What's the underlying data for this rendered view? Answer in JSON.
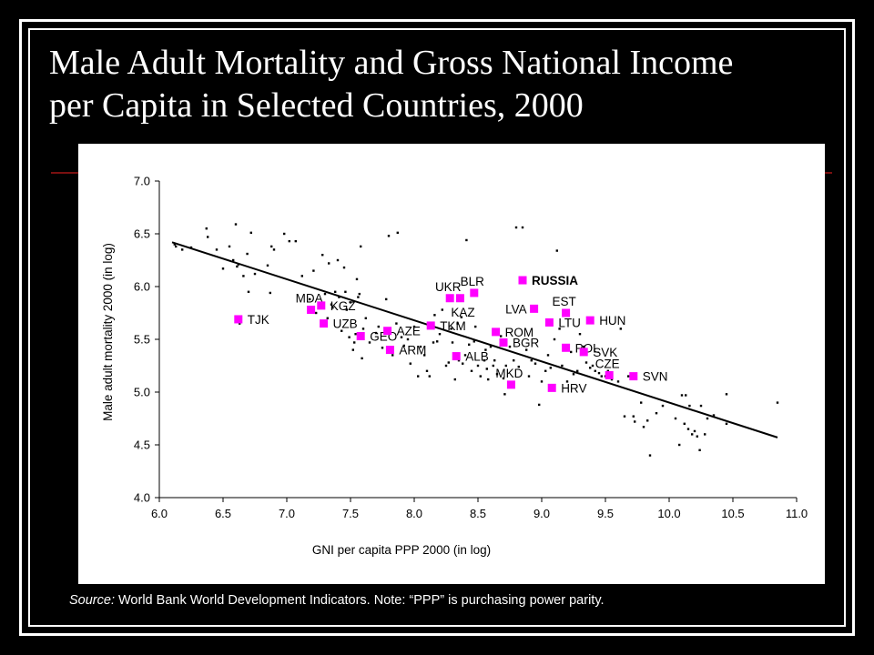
{
  "slide": {
    "title_line1": "Male Adult Mortality and Gross National Income",
    "title_line2": "per Capita in Selected Countries, 2000",
    "source_label": "Source:",
    "source_text": " World Bank World Development Indicators.  Note: “PPP” is purchasing power parity."
  },
  "colors": {
    "background": "#000000",
    "highlight": "#ff00ff",
    "point": "#000000",
    "accent_line": "#7a1010"
  },
  "chart_data": {
    "type": "scatter",
    "title": "",
    "xlabel": "GNI per capita PPP 2000 (in log)",
    "ylabel": "Male adult mortality 2000 (in log)",
    "xlim": [
      6.0,
      11.0
    ],
    "ylim": [
      4.0,
      7.0
    ],
    "xticks": [
      "6.0",
      "6.5",
      "7.0",
      "7.5",
      "8.0",
      "8.5",
      "9.0",
      "9.5",
      "10.0",
      "10.5",
      "11.0"
    ],
    "yticks": [
      "4.0",
      "4.5",
      "5.0",
      "5.5",
      "6.0",
      "6.5",
      "7.0"
    ],
    "grid": false,
    "trendline": {
      "x": [
        6.1,
        10.85
      ],
      "y": [
        6.42,
        4.57
      ]
    },
    "highlighted": [
      {
        "label": "TJK",
        "x": 6.62,
        "y": 5.69,
        "label_pos": "right",
        "bold": false
      },
      {
        "label": "MDA",
        "x": 7.19,
        "y": 5.78,
        "label_pos": "above",
        "bold": false
      },
      {
        "label": "KGZ",
        "x": 7.27,
        "y": 5.82,
        "label_pos": "right",
        "bold": false
      },
      {
        "label": "UZB",
        "x": 7.29,
        "y": 5.65,
        "label_pos": "right",
        "bold": false
      },
      {
        "label": "GEO",
        "x": 7.58,
        "y": 5.53,
        "label_pos": "right",
        "bold": false
      },
      {
        "label": "AZE",
        "x": 7.79,
        "y": 5.58,
        "label_pos": "right",
        "bold": false
      },
      {
        "label": "ARM",
        "x": 7.81,
        "y": 5.4,
        "label_pos": "right",
        "bold": false
      },
      {
        "label": "TKM",
        "x": 8.13,
        "y": 5.63,
        "label_pos": "right",
        "bold": false
      },
      {
        "label": "UKR",
        "x": 8.28,
        "y": 5.89,
        "label_pos": "above",
        "bold": false
      },
      {
        "label": "KAZ",
        "x": 8.36,
        "y": 5.89,
        "label_pos": "below",
        "bold": false
      },
      {
        "label": "BLR",
        "x": 8.47,
        "y": 5.94,
        "label_pos": "above",
        "bold": false
      },
      {
        "label": "ALB",
        "x": 8.33,
        "y": 5.34,
        "label_pos": "right",
        "bold": false
      },
      {
        "label": "ROM",
        "x": 8.64,
        "y": 5.57,
        "label_pos": "right",
        "bold": false
      },
      {
        "label": "BGR",
        "x": 8.7,
        "y": 5.47,
        "label_pos": "right",
        "bold": false
      },
      {
        "label": "MKD",
        "x": 8.76,
        "y": 5.07,
        "label_pos": "above",
        "bold": false
      },
      {
        "label": "RUSSIA",
        "x": 8.85,
        "y": 6.06,
        "label_pos": "right",
        "bold": true
      },
      {
        "label": "LVA",
        "x": 8.94,
        "y": 5.79,
        "label_pos": "left",
        "bold": false
      },
      {
        "label": "LTU",
        "x": 9.06,
        "y": 5.66,
        "label_pos": "right",
        "bold": false
      },
      {
        "label": "HRV",
        "x": 9.08,
        "y": 5.04,
        "label_pos": "right",
        "bold": false
      },
      {
        "label": "EST",
        "x": 9.19,
        "y": 5.75,
        "label_pos": "above",
        "bold": false
      },
      {
        "label": "POL",
        "x": 9.19,
        "y": 5.42,
        "label_pos": "right",
        "bold": false
      },
      {
        "label": "HUN",
        "x": 9.38,
        "y": 5.68,
        "label_pos": "right",
        "bold": false
      },
      {
        "label": "SVK",
        "x": 9.33,
        "y": 5.38,
        "label_pos": "right",
        "bold": false
      },
      {
        "label": "CZE",
        "x": 9.53,
        "y": 5.16,
        "label_pos": "above",
        "bold": false
      },
      {
        "label": "SVN",
        "x": 9.72,
        "y": 5.15,
        "label_pos": "right",
        "bold": false
      }
    ],
    "others": [
      [
        6.12,
        6.4
      ],
      [
        6.13,
        6.38
      ],
      [
        6.18,
        6.35
      ],
      [
        6.25,
        6.37
      ],
      [
        6.37,
        6.55
      ],
      [
        6.38,
        6.47
      ],
      [
        6.45,
        6.35
      ],
      [
        6.5,
        6.17
      ],
      [
        6.55,
        6.38
      ],
      [
        6.58,
        6.25
      ],
      [
        6.6,
        6.59
      ],
      [
        6.61,
        6.19
      ],
      [
        6.62,
        6.21
      ],
      [
        6.63,
        5.65
      ],
      [
        6.66,
        6.1
      ],
      [
        6.69,
        6.31
      ],
      [
        6.7,
        5.95
      ],
      [
        6.72,
        6.51
      ],
      [
        6.75,
        6.12
      ],
      [
        6.85,
        6.2
      ],
      [
        6.87,
        5.94
      ],
      [
        6.88,
        6.38
      ],
      [
        6.9,
        6.35
      ],
      [
        6.98,
        6.5
      ],
      [
        7.02,
        6.43
      ],
      [
        7.07,
        6.43
      ],
      [
        7.12,
        6.1
      ],
      [
        7.18,
        5.88
      ],
      [
        7.21,
        6.15
      ],
      [
        7.23,
        5.75
      ],
      [
        7.28,
        6.3
      ],
      [
        7.3,
        5.93
      ],
      [
        7.32,
        5.7
      ],
      [
        7.33,
        6.22
      ],
      [
        7.35,
        5.83
      ],
      [
        7.36,
        5.8
      ],
      [
        7.38,
        5.95
      ],
      [
        7.4,
        6.25
      ],
      [
        7.41,
        5.9
      ],
      [
        7.43,
        5.58
      ],
      [
        7.45,
        6.18
      ],
      [
        7.46,
        5.95
      ],
      [
        7.47,
        5.78
      ],
      [
        7.49,
        5.52
      ],
      [
        7.5,
        5.85
      ],
      [
        7.52,
        5.4
      ],
      [
        7.53,
        5.47
      ],
      [
        7.54,
        5.55
      ],
      [
        7.55,
        6.07
      ],
      [
        7.56,
        5.9
      ],
      [
        7.57,
        5.93
      ],
      [
        7.58,
        6.38
      ],
      [
        7.59,
        5.32
      ],
      [
        7.6,
        5.6
      ],
      [
        7.62,
        5.7
      ],
      [
        7.65,
        5.47
      ],
      [
        7.7,
        5.56
      ],
      [
        7.72,
        5.62
      ],
      [
        7.75,
        5.42
      ],
      [
        7.78,
        5.88
      ],
      [
        7.8,
        6.48
      ],
      [
        7.83,
        5.35
      ],
      [
        7.86,
        5.65
      ],
      [
        7.87,
        6.51
      ],
      [
        7.9,
        5.52
      ],
      [
        7.92,
        5.44
      ],
      [
        7.95,
        5.5
      ],
      [
        7.97,
        5.27
      ],
      [
        8.0,
        5.62
      ],
      [
        8.03,
        5.15
      ],
      [
        8.05,
        5.43
      ],
      [
        8.08,
        5.35
      ],
      [
        8.1,
        5.2
      ],
      [
        8.12,
        5.15
      ],
      [
        8.15,
        5.47
      ],
      [
        8.16,
        5.73
      ],
      [
        8.18,
        5.48
      ],
      [
        8.2,
        5.55
      ],
      [
        8.22,
        5.78
      ],
      [
        8.25,
        5.25
      ],
      [
        8.27,
        5.28
      ],
      [
        8.29,
        5.6
      ],
      [
        8.3,
        5.47
      ],
      [
        8.32,
        5.12
      ],
      [
        8.34,
        5.65
      ],
      [
        8.35,
        5.3
      ],
      [
        8.37,
        5.71
      ],
      [
        8.38,
        5.27
      ],
      [
        8.4,
        5.35
      ],
      [
        8.41,
        6.44
      ],
      [
        8.43,
        5.45
      ],
      [
        8.45,
        5.2
      ],
      [
        8.47,
        5.48
      ],
      [
        8.48,
        5.62
      ],
      [
        8.5,
        5.25
      ],
      [
        8.52,
        5.15
      ],
      [
        8.55,
        5.3
      ],
      [
        8.56,
        5.4
      ],
      [
        8.57,
        5.22
      ],
      [
        8.58,
        5.12
      ],
      [
        8.6,
        5.43
      ],
      [
        8.62,
        5.25
      ],
      [
        8.63,
        5.3
      ],
      [
        8.65,
        5.17
      ],
      [
        8.68,
        5.53
      ],
      [
        8.7,
        5.13
      ],
      [
        8.71,
        4.98
      ],
      [
        8.72,
        5.25
      ],
      [
        8.75,
        5.43
      ],
      [
        8.78,
        5.3
      ],
      [
        8.8,
        6.56
      ],
      [
        8.82,
        5.24
      ],
      [
        8.85,
        6.56
      ],
      [
        8.88,
        5.4
      ],
      [
        8.9,
        5.15
      ],
      [
        8.92,
        5.3
      ],
      [
        8.95,
        5.27
      ],
      [
        8.98,
        4.88
      ],
      [
        9.0,
        5.1
      ],
      [
        9.03,
        5.2
      ],
      [
        9.05,
        5.35
      ],
      [
        9.07,
        5.23
      ],
      [
        9.1,
        5.5
      ],
      [
        9.12,
        6.34
      ],
      [
        9.14,
        5.6
      ],
      [
        9.16,
        5.25
      ],
      [
        9.18,
        5.43
      ],
      [
        9.2,
        5.1
      ],
      [
        9.23,
        5.38
      ],
      [
        9.25,
        5.17
      ],
      [
        9.28,
        5.2
      ],
      [
        9.3,
        5.55
      ],
      [
        9.33,
        5.43
      ],
      [
        9.35,
        5.28
      ],
      [
        9.38,
        5.23
      ],
      [
        9.4,
        5.25
      ],
      [
        9.42,
        5.2
      ],
      [
        9.45,
        5.18
      ],
      [
        9.47,
        5.15
      ],
      [
        9.5,
        5.15
      ],
      [
        9.52,
        5.2
      ],
      [
        9.55,
        5.12
      ],
      [
        9.6,
        5.1
      ],
      [
        9.62,
        5.6
      ],
      [
        9.65,
        4.77
      ],
      [
        9.68,
        5.15
      ],
      [
        9.72,
        4.77
      ],
      [
        9.73,
        4.72
      ],
      [
        9.78,
        4.9
      ],
      [
        9.8,
        4.67
      ],
      [
        9.83,
        4.73
      ],
      [
        9.85,
        4.4
      ],
      [
        9.9,
        4.8
      ],
      [
        9.95,
        4.87
      ],
      [
        10.05,
        4.75
      ],
      [
        10.08,
        4.5
      ],
      [
        10.1,
        4.97
      ],
      [
        10.12,
        4.7
      ],
      [
        10.13,
        4.97
      ],
      [
        10.15,
        4.65
      ],
      [
        10.16,
        4.87
      ],
      [
        10.18,
        4.6
      ],
      [
        10.2,
        4.63
      ],
      [
        10.22,
        4.58
      ],
      [
        10.24,
        4.45
      ],
      [
        10.25,
        4.87
      ],
      [
        10.28,
        4.6
      ],
      [
        10.3,
        4.75
      ],
      [
        10.35,
        4.78
      ],
      [
        10.45,
        4.7
      ],
      [
        10.45,
        4.98
      ],
      [
        10.85,
        4.9
      ]
    ]
  }
}
